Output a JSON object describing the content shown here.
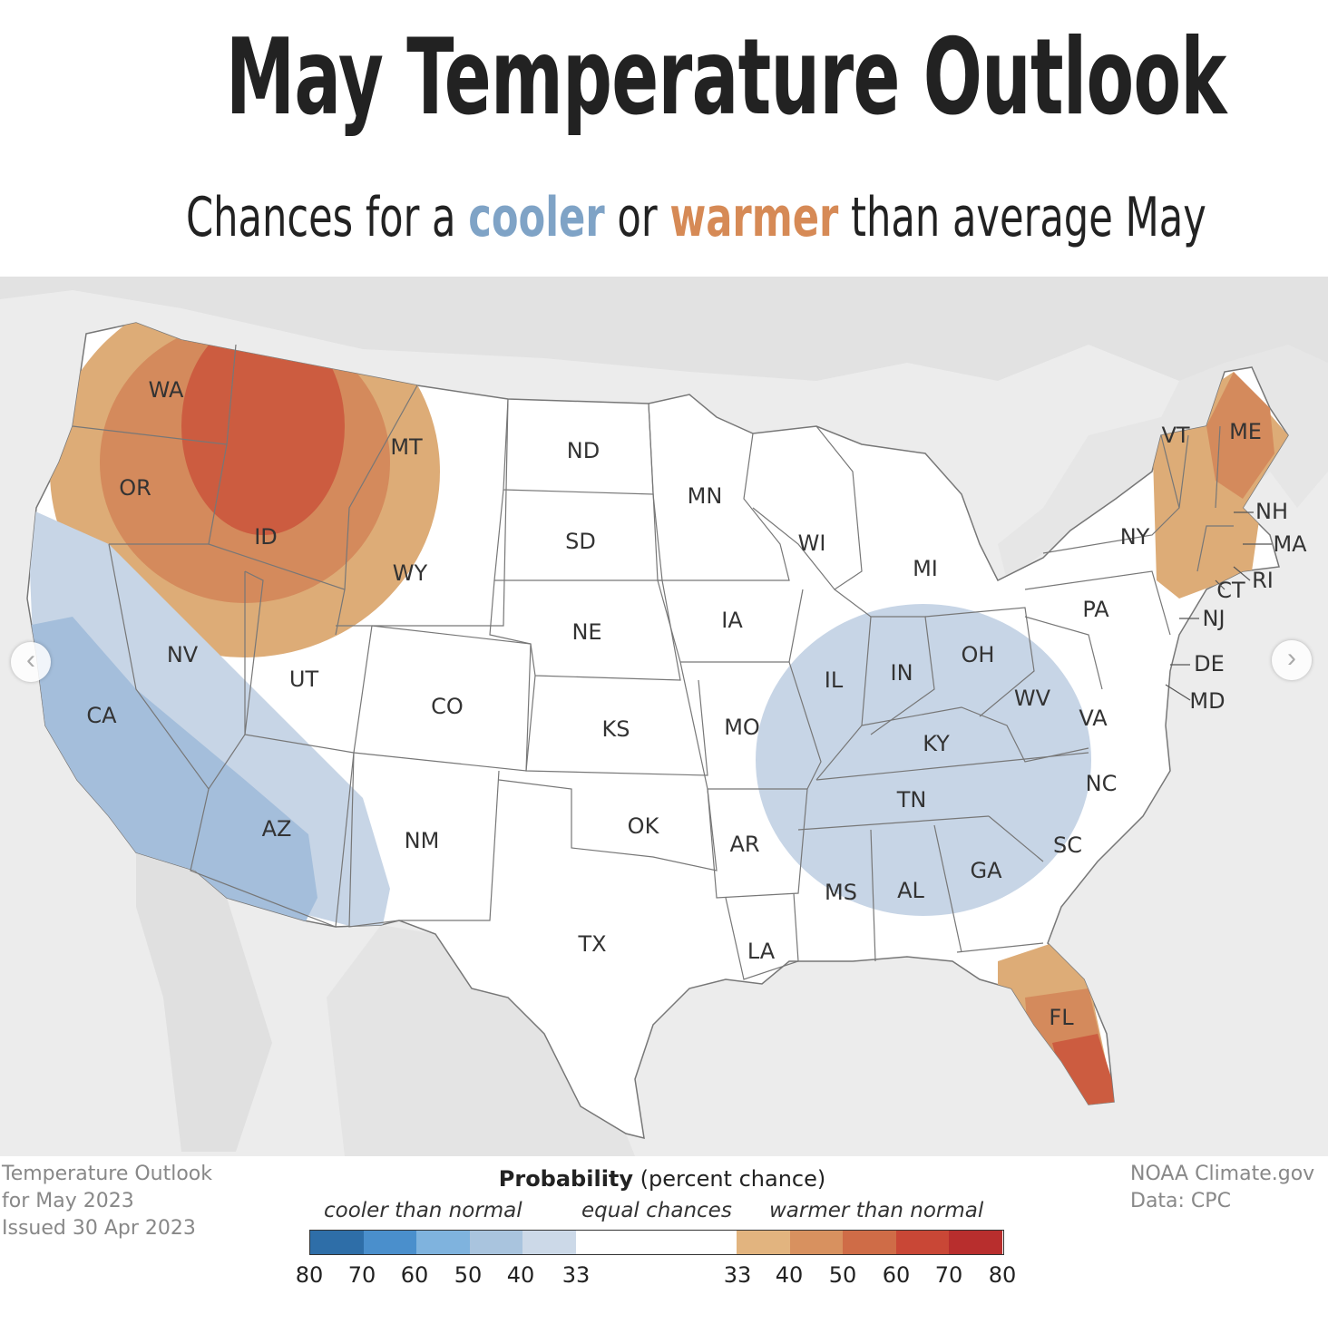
{
  "title": "May Temperature Outlook",
  "subtitle": {
    "prefix": "Chances for a",
    "cool_word": "cooler",
    "middle": "or",
    "warm_word": "warmer",
    "suffix": "than average May"
  },
  "colors": {
    "cool_text": "#7fa3c6",
    "warm_text": "#d68a56",
    "cool_33_40": "#c7d5e6",
    "cool_40_50": "#a4bedb",
    "warm_33_40": "#ddac77",
    "warm_40_50": "#d48a5c",
    "warm_50_60": "#cc5c40",
    "background_land": "#e9e9e9",
    "us_land": "#ffffff"
  },
  "states": [
    "WA",
    "OR",
    "CA",
    "ID",
    "NV",
    "MT",
    "WY",
    "UT",
    "AZ",
    "CO",
    "NM",
    "ND",
    "SD",
    "NE",
    "KS",
    "OK",
    "TX",
    "MN",
    "IA",
    "MO",
    "AR",
    "LA",
    "WI",
    "IL",
    "MI",
    "IN",
    "OH",
    "KY",
    "TN",
    "MS",
    "AL",
    "GA",
    "FL",
    "SC",
    "NC",
    "VA",
    "WV",
    "PA",
    "NY",
    "VT",
    "ME",
    "NH",
    "MA",
    "RI",
    "CT",
    "NJ",
    "DE",
    "MD"
  ],
  "outlook": {
    "warmer": [
      "WA",
      "OR",
      "ID",
      "MT",
      "WY",
      "ME",
      "NH",
      "VT",
      "MA",
      "CT",
      "RI",
      "FL"
    ],
    "cooler": [
      "CA",
      "NV",
      "AZ",
      "UT",
      "IL",
      "IN",
      "OH",
      "KY",
      "TN",
      "WV",
      "VA",
      "MS",
      "AL",
      "GA",
      "SC",
      "NC"
    ]
  },
  "credit_left": [
    "Temperature Outlook",
    "for May 2023",
    "Issued 30 Apr 2023"
  ],
  "credit_right": [
    "NOAA Climate.gov",
    "Data: CPC"
  ],
  "legend": {
    "title_bold": "Probability",
    "title_rest": "(percent chance)",
    "cooler_label": "cooler than normal",
    "equal_label": "equal chances",
    "warmer_label": "warmer than normal",
    "ticks": [
      "80",
      "70",
      "60",
      "50",
      "40",
      "33",
      "33",
      "40",
      "50",
      "60",
      "70",
      "80"
    ],
    "swatches": [
      "#2e6ea8",
      "#4a8fcc",
      "#7fb3de",
      "#a9c4de",
      "#ccd9e8",
      "#ffffff",
      "#e2b47f",
      "#d8915f",
      "#cf6c47",
      "#c94736",
      "#b82e2d"
    ]
  },
  "nav": {
    "prev": "‹",
    "next": "›"
  }
}
